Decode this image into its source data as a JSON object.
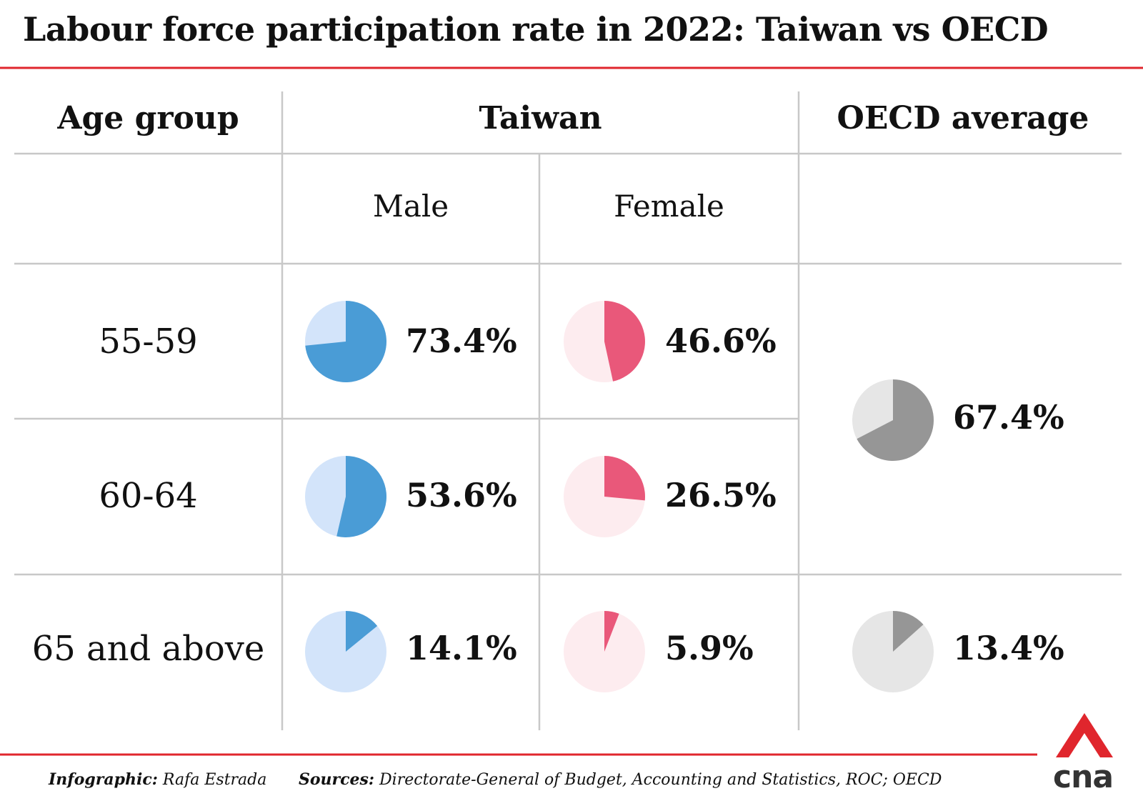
{
  "title": "Labour force participation rate in 2022: Taiwan vs OECD",
  "colors": {
    "accent_red": "#e0262d",
    "grid": "#c8c8c8",
    "male": "#4a9cd6",
    "male_bg": "#d3e4fa",
    "female": "#e9587a",
    "female_bg": "#fdecef",
    "oecd": "#969696",
    "oecd_bg": "#e6e6e6"
  },
  "header": {
    "age_group": "Age group",
    "taiwan": "Taiwan",
    "oecd": "OECD average",
    "male": "Male",
    "female": "Female"
  },
  "chart_data": {
    "type": "pie",
    "title": "Labour force participation rate in 2022: Taiwan vs OECD",
    "unit": "%",
    "rows": [
      {
        "age": "55-59",
        "male": 73.4,
        "male_label": "73.4%",
        "female": 46.6,
        "female_label": "46.6%"
      },
      {
        "age": "60-64",
        "male": 53.6,
        "male_label": "53.6%",
        "female": 26.5,
        "female_label": "26.5%"
      },
      {
        "age": "65 and above",
        "male": 14.1,
        "male_label": "14.1%",
        "female": 5.9,
        "female_label": "5.9%"
      }
    ],
    "oecd": [
      {
        "ages": "55-64",
        "value": 67.4,
        "label": "67.4%"
      },
      {
        "ages": "65 and above",
        "value": 13.4,
        "label": "13.4%"
      }
    ]
  },
  "footer": {
    "infographic_label": "Infographic:",
    "infographic_value": "Rafa Estrada",
    "sources_label": "Sources:",
    "sources_value": "Directorate-General of Budget, Accounting and Statistics, ROC; OECD",
    "logo_text": "cna"
  }
}
